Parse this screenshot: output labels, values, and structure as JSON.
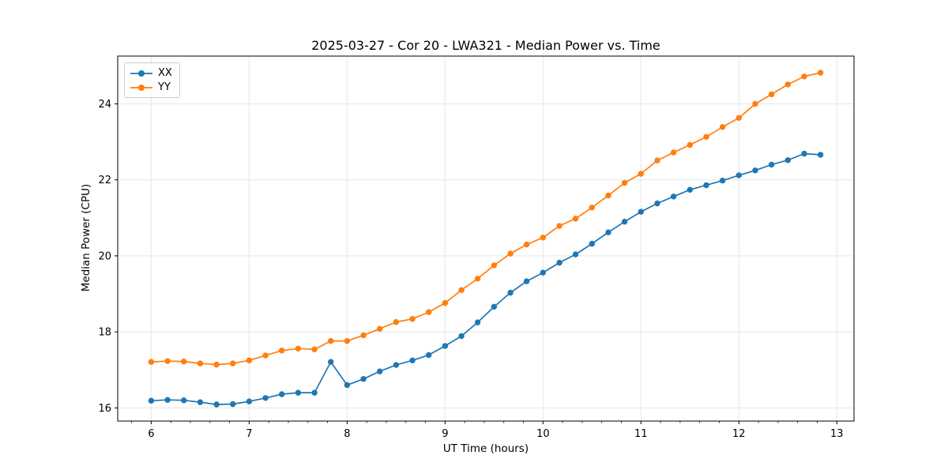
{
  "chart_data": {
    "type": "line",
    "title": "2025-03-27 - Cor 20 - LWA321 - Median Power vs. Time",
    "xlabel": "UT Time (hours)",
    "ylabel": "Median Power (CPU)",
    "xlim": [
      5.658,
      13.175
    ],
    "ylim": [
      15.653,
      25.257
    ],
    "x_ticks": [
      6,
      7,
      8,
      9,
      10,
      11,
      12,
      13
    ],
    "y_ticks": [
      16,
      18,
      20,
      22,
      24
    ],
    "x_minor_step": 0.2,
    "grid": true,
    "grid_color": "#e6e6e6",
    "legend_position": "upper-left",
    "background": "#ffffff",
    "x": [
      6,
      6.167,
      6.333,
      6.5,
      6.667,
      6.833,
      7,
      7.167,
      7.333,
      7.5,
      7.667,
      7.833,
      8,
      8.167,
      8.333,
      8.5,
      8.667,
      8.833,
      9,
      9.167,
      9.333,
      9.5,
      9.667,
      9.833,
      10,
      10.167,
      10.333,
      10.5,
      10.667,
      10.833,
      11,
      11.167,
      11.333,
      11.5,
      11.667,
      11.833,
      12,
      12.167,
      12.333,
      12.5,
      12.667,
      12.833
    ],
    "series": [
      {
        "name": "XX",
        "color": "#1f77b4",
        "values": [
          16.19,
          16.21,
          16.2,
          16.15,
          16.09,
          16.1,
          16.17,
          16.26,
          16.36,
          16.4,
          16.4,
          17.21,
          16.6,
          16.76,
          16.96,
          17.13,
          17.25,
          17.39,
          17.63,
          17.89,
          18.25,
          18.66,
          19.03,
          19.33,
          19.56,
          19.82,
          20.04,
          20.32,
          20.62,
          20.9,
          21.16,
          21.38,
          21.56,
          21.74,
          21.86,
          21.98,
          22.12,
          22.25,
          22.4,
          22.52,
          22.69,
          22.66
        ]
      },
      {
        "name": "YY",
        "color": "#ff7f0e",
        "values": [
          17.21,
          17.23,
          17.22,
          17.17,
          17.14,
          17.17,
          17.25,
          17.38,
          17.51,
          17.56,
          17.54,
          17.76,
          17.76,
          17.91,
          18.08,
          18.26,
          18.34,
          18.52,
          18.76,
          19.1,
          19.4,
          19.75,
          20.06,
          20.3,
          20.48,
          20.79,
          20.98,
          21.27,
          21.59,
          21.92,
          22.16,
          22.51,
          22.72,
          22.92,
          23.13,
          23.39,
          23.63,
          24.0,
          24.25,
          24.51,
          24.72,
          24.82
        ]
      }
    ]
  }
}
